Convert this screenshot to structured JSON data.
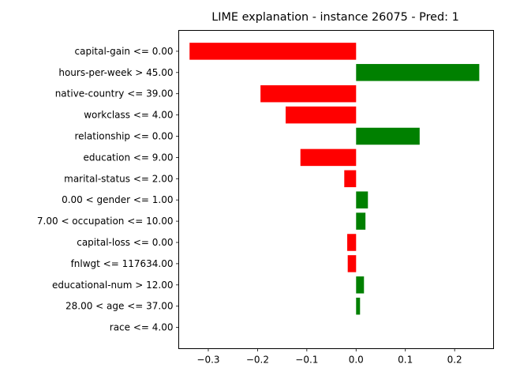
{
  "chart_data": {
    "type": "bar",
    "orientation": "horizontal",
    "title": "LIME explanation - instance 26075 - Pred: 1",
    "xlabel": "",
    "ylabel": "",
    "categories": [
      "capital-gain <= 0.00",
      "hours-per-week > 45.00",
      "native-country <= 39.00",
      "workclass <= 4.00",
      "relationship <= 0.00",
      "education <= 9.00",
      "marital-status <= 2.00",
      "0.00 < gender <= 1.00",
      "7.00 < occupation <= 10.00",
      "capital-loss <= 0.00",
      "fnlwgt <= 117634.00",
      "educational-num > 12.00",
      "28.00 < age <= 37.00",
      "race <= 4.00"
    ],
    "values": [
      -0.338,
      0.25,
      -0.194,
      -0.143,
      0.129,
      -0.113,
      -0.024,
      0.024,
      0.019,
      -0.018,
      -0.017,
      0.016,
      0.008,
      0.0
    ],
    "xlim": [
      -0.36,
      0.279
    ],
    "xticks": [
      -0.3,
      -0.2,
      -0.1,
      0.0,
      0.1,
      0.2
    ],
    "xtick_labels": [
      "−0.3",
      "−0.2",
      "−0.1",
      "0.0",
      "0.1",
      "0.2"
    ],
    "positive_color": "#008000",
    "negative_color": "#ff0000",
    "grid": false,
    "legend": "none"
  }
}
